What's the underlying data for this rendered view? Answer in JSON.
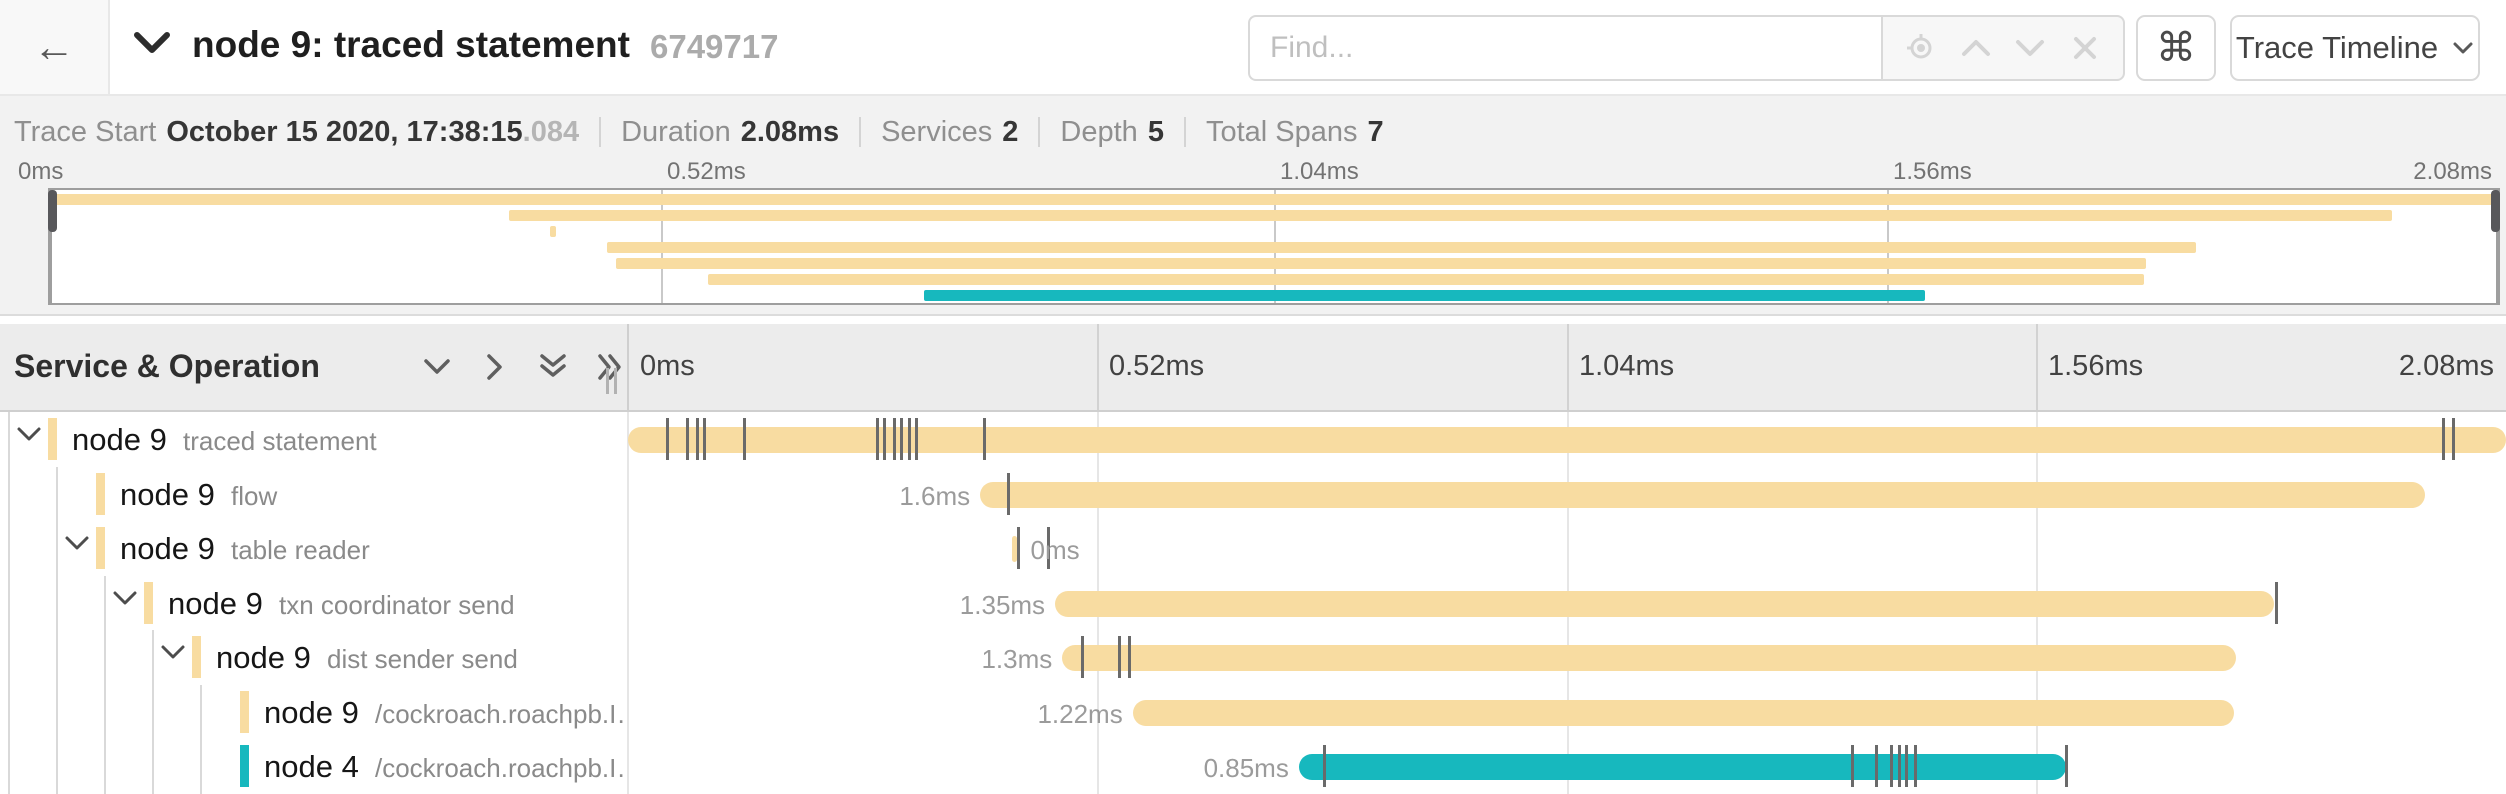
{
  "topbar": {
    "back_icon": "←",
    "collapse_icon": "chevron-down",
    "title": "node 9: traced statement",
    "trace_id": "6749717",
    "find_placeholder": "Find...",
    "keyboard_shortcut_icon": "⌘",
    "view_selector_label": "Trace Timeline"
  },
  "summary": {
    "trace_start_label": "Trace Start",
    "trace_start_value": "October 15 2020, 17:38:15",
    "trace_start_fraction": ".084",
    "duration_label": "Duration",
    "duration_value": "2.08ms",
    "services_label": "Services",
    "services_value": "2",
    "depth_label": "Depth",
    "depth_value": "5",
    "total_spans_label": "Total Spans",
    "total_spans_value": "7"
  },
  "timeline": {
    "header_left": "Service & Operation",
    "total_duration_ms": 2.08,
    "ticks": [
      "0ms",
      "0.52ms",
      "1.04ms",
      "1.56ms",
      "2.08ms"
    ]
  },
  "colors": {
    "tan": "#F8DCA1",
    "teal": "#17B8BE"
  },
  "spans": [
    {
      "service": "node 9",
      "operation": "traced statement",
      "level": 0,
      "has_children": true,
      "color": "tan",
      "start_ms": 0,
      "duration_ms": 2.08,
      "duration_label": "",
      "log_ticks_pct": [
        2.0,
        3.1,
        3.6,
        4.0,
        6.1,
        13.2,
        13.6,
        14.1,
        14.5,
        14.9,
        15.3,
        18.9,
        96.6,
        97.1
      ]
    },
    {
      "service": "node 9",
      "operation": "flow",
      "level": 1,
      "has_children": false,
      "color": "tan",
      "start_ms": 0.39,
      "duration_ms": 1.6,
      "duration_label": "1.6ms",
      "log_ticks_pct": [
        20.2
      ]
    },
    {
      "service": "node 9",
      "operation": "table reader",
      "level": 1,
      "has_children": true,
      "color": "tan",
      "start_ms": 0.425,
      "duration_ms": 0.005,
      "duration_label": "0ms",
      "label_after": true,
      "log_ticks_pct": [
        20.7,
        22.3
      ]
    },
    {
      "service": "node 9",
      "operation": "txn coordinator send",
      "level": 2,
      "has_children": true,
      "color": "tan",
      "start_ms": 0.473,
      "duration_ms": 1.35,
      "duration_label": "1.35ms",
      "log_ticks_pct": [
        87.7
      ]
    },
    {
      "service": "node 9",
      "operation": "dist sender send",
      "level": 3,
      "has_children": true,
      "color": "tan",
      "start_ms": 0.481,
      "duration_ms": 1.3,
      "duration_label": "1.3ms",
      "log_ticks_pct": [
        24.1,
        26.1,
        26.6
      ]
    },
    {
      "service": "node 9",
      "operation": "/cockroach.roachpb.I…",
      "level": 4,
      "has_children": false,
      "color": "tan",
      "start_ms": 0.559,
      "duration_ms": 1.22,
      "duration_label": "1.22ms",
      "log_ticks_pct": []
    },
    {
      "service": "node 4",
      "operation": "/cockroach.roachpb.I…",
      "level": 4,
      "has_children": false,
      "color": "teal",
      "start_ms": 0.743,
      "duration_ms": 0.85,
      "duration_label": "0.85ms",
      "log_ticks_pct": [
        37.0,
        65.1,
        66.4,
        67.2,
        67.6,
        68.0,
        68.5,
        76.5
      ]
    }
  ]
}
